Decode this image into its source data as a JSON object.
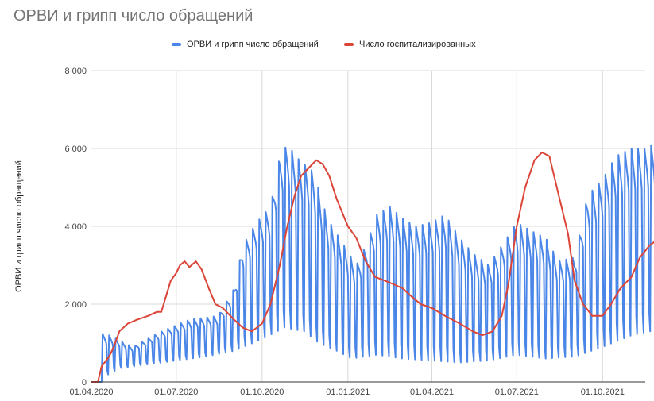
{
  "chart_data": {
    "type": "line",
    "title": "ОРВИ и грипп число обращений",
    "ylabel": "ОРВИ и грипп число обращений",
    "xlabel": "",
    "ylim": [
      0,
      8000
    ],
    "xlim": [
      "2020-04-01",
      "2021-12-31"
    ],
    "grid": true,
    "legend_position": "top",
    "y_ticks": [
      "0",
      "2 000",
      "4 000",
      "6 000",
      "8 000"
    ],
    "x_ticks": [
      {
        "label": "01.04.2020",
        "date": "2020-04-01"
      },
      {
        "label": "01.07.2020",
        "date": "2020-07-01"
      },
      {
        "label": "01.10.2020",
        "date": "2020-10-01"
      },
      {
        "label": "01.01.2021",
        "date": "2021-01-01"
      },
      {
        "label": "01.04.2021",
        "date": "2021-04-01"
      },
      {
        "label": "01.07.2021",
        "date": "2021-07-01"
      },
      {
        "label": "01.10.2021",
        "date": "2021-10-01"
      }
    ],
    "series": [
      {
        "name": "ОРВИ и грипп число обращений",
        "color": "#4a86e8",
        "style": "weekly-oscillating",
        "peaks": [
          [
            "2020-04-01",
            1300
          ],
          [
            "2020-04-20",
            1200
          ],
          [
            "2020-05-15",
            900
          ],
          [
            "2020-06-15",
            1300
          ],
          [
            "2020-07-15",
            1600
          ],
          [
            "2020-08-15",
            1700
          ],
          [
            "2020-09-01",
            2400
          ],
          [
            "2020-09-10",
            3500
          ],
          [
            "2020-09-25",
            4100
          ],
          [
            "2020-10-10",
            4500
          ],
          [
            "2020-10-20",
            5800
          ],
          [
            "2020-10-28",
            6100
          ],
          [
            "2020-11-10",
            5700
          ],
          [
            "2020-11-25",
            5400
          ],
          [
            "2020-12-10",
            4200
          ],
          [
            "2020-12-28",
            3500
          ],
          [
            "2021-01-10",
            3000
          ],
          [
            "2021-01-20",
            3500
          ],
          [
            "2021-02-01",
            4300
          ],
          [
            "2021-02-15",
            4500
          ],
          [
            "2021-03-01",
            4200
          ],
          [
            "2021-03-15",
            4000
          ],
          [
            "2021-04-01",
            4100
          ],
          [
            "2021-04-15",
            4300
          ],
          [
            "2021-05-01",
            3700
          ],
          [
            "2021-05-15",
            3300
          ],
          [
            "2021-06-01",
            3000
          ],
          [
            "2021-06-15",
            3500
          ],
          [
            "2021-07-01",
            4100
          ],
          [
            "2021-07-15",
            3900
          ],
          [
            "2021-08-01",
            3700
          ],
          [
            "2021-08-15",
            3100
          ],
          [
            "2021-09-01",
            3200
          ],
          [
            "2021-09-15",
            4800
          ],
          [
            "2021-10-01",
            5200
          ],
          [
            "2021-10-15",
            5800
          ],
          [
            "2021-11-01",
            6000
          ],
          [
            "2021-11-15",
            6000
          ],
          [
            "2021-12-01",
            6200
          ],
          [
            "2021-12-25",
            5200
          ]
        ],
        "troughs": [
          [
            "2020-04-01",
            0
          ],
          [
            "2020-04-12",
            100
          ],
          [
            "2020-05-01",
            350
          ],
          [
            "2020-06-01",
            450
          ],
          [
            "2020-07-01",
            550
          ],
          [
            "2020-08-01",
            650
          ],
          [
            "2020-09-01",
            800
          ],
          [
            "2020-10-01",
            1100
          ],
          [
            "2020-10-25",
            1400
          ],
          [
            "2020-11-15",
            1300
          ],
          [
            "2020-12-01",
            1000
          ],
          [
            "2020-12-20",
            800
          ],
          [
            "2021-01-05",
            600
          ],
          [
            "2021-02-01",
            700
          ],
          [
            "2021-03-01",
            600
          ],
          [
            "2021-04-01",
            550
          ],
          [
            "2021-05-01",
            500
          ],
          [
            "2021-06-01",
            550
          ],
          [
            "2021-07-01",
            700
          ],
          [
            "2021-08-01",
            600
          ],
          [
            "2021-09-01",
            650
          ],
          [
            "2021-10-01",
            900
          ],
          [
            "2021-11-01",
            1200
          ],
          [
            "2021-12-01",
            1350
          ],
          [
            "2021-12-25",
            1300
          ]
        ]
      },
      {
        "name": "Число госпитализированных",
        "color": "#db4437",
        "points": [
          [
            "2020-04-01",
            0
          ],
          [
            "2020-04-08",
            0
          ],
          [
            "2020-04-12",
            400
          ],
          [
            "2020-04-20",
            650
          ],
          [
            "2020-04-25",
            900
          ],
          [
            "2020-05-01",
            1300
          ],
          [
            "2020-05-10",
            1500
          ],
          [
            "2020-05-20",
            1600
          ],
          [
            "2020-06-01",
            1700
          ],
          [
            "2020-06-10",
            1800
          ],
          [
            "2020-06-15",
            1800
          ],
          [
            "2020-06-25",
            2600
          ],
          [
            "2020-07-01",
            2800
          ],
          [
            "2020-07-05",
            3000
          ],
          [
            "2020-07-10",
            3100
          ],
          [
            "2020-07-15",
            2950
          ],
          [
            "2020-07-22",
            3100
          ],
          [
            "2020-07-28",
            2900
          ],
          [
            "2020-08-05",
            2400
          ],
          [
            "2020-08-12",
            2000
          ],
          [
            "2020-08-20",
            1900
          ],
          [
            "2020-09-01",
            1600
          ],
          [
            "2020-09-10",
            1400
          ],
          [
            "2020-09-20",
            1300
          ],
          [
            "2020-10-01",
            1500
          ],
          [
            "2020-10-10",
            2000
          ],
          [
            "2020-10-20",
            3000
          ],
          [
            "2020-10-28",
            4000
          ],
          [
            "2020-11-05",
            4800
          ],
          [
            "2020-11-12",
            5300
          ],
          [
            "2020-11-20",
            5500
          ],
          [
            "2020-11-28",
            5700
          ],
          [
            "2020-12-05",
            5600
          ],
          [
            "2020-12-12",
            5300
          ],
          [
            "2020-12-20",
            4700
          ],
          [
            "2021-01-01",
            4000
          ],
          [
            "2021-01-10",
            3700
          ],
          [
            "2021-01-20",
            3100
          ],
          [
            "2021-01-30",
            2700
          ],
          [
            "2021-02-10",
            2600
          ],
          [
            "2021-02-20",
            2500
          ],
          [
            "2021-03-01",
            2400
          ],
          [
            "2021-03-10",
            2200
          ],
          [
            "2021-03-20",
            2000
          ],
          [
            "2021-04-01",
            1900
          ],
          [
            "2021-04-15",
            1700
          ],
          [
            "2021-05-01",
            1500
          ],
          [
            "2021-05-15",
            1300
          ],
          [
            "2021-05-25",
            1200
          ],
          [
            "2021-06-05",
            1300
          ],
          [
            "2021-06-15",
            1700
          ],
          [
            "2021-06-22",
            2500
          ],
          [
            "2021-07-01",
            4000
          ],
          [
            "2021-07-10",
            5000
          ],
          [
            "2021-07-20",
            5700
          ],
          [
            "2021-07-28",
            5900
          ],
          [
            "2021-08-05",
            5800
          ],
          [
            "2021-08-15",
            4800
          ],
          [
            "2021-08-25",
            3800
          ],
          [
            "2021-09-01",
            2600
          ],
          [
            "2021-09-10",
            2000
          ],
          [
            "2021-09-20",
            1700
          ],
          [
            "2021-10-01",
            1700
          ],
          [
            "2021-10-10",
            2000
          ],
          [
            "2021-10-20",
            2400
          ],
          [
            "2021-11-01",
            2700
          ],
          [
            "2021-11-10",
            3200
          ],
          [
            "2021-11-20",
            3500
          ],
          [
            "2021-12-01",
            3700
          ],
          [
            "2021-12-10",
            3900
          ],
          [
            "2021-12-18",
            4200
          ],
          [
            "2021-12-25",
            4000
          ]
        ]
      }
    ]
  }
}
